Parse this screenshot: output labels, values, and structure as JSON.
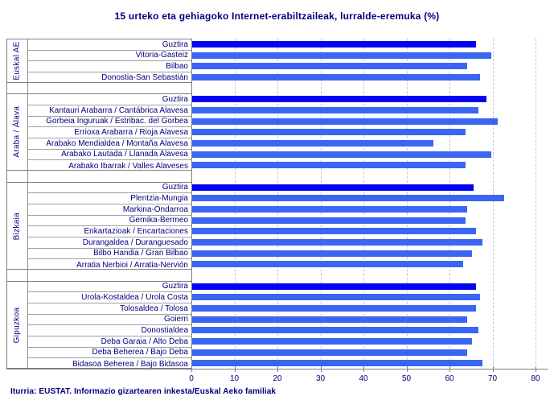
{
  "title": "15 urteko eta gehiagoko Internet-erabiltzaileak, lurralde-eremuka (%)",
  "source_note": "Iturria: EUSTAT. Informazio gizartearen inkesta/Euskal Aeko familiak",
  "colors": {
    "bar_total": "#0404f0",
    "bar_region": "#3a66f1",
    "text": "#00007d",
    "axis_line": "#808080",
    "row_separator": "#a0a0a0",
    "gridline": "#c6c6c6"
  },
  "chart_data": {
    "type": "bar",
    "orientation": "horizontal",
    "title": "15 urteko eta gehiagoko Internet-erabiltzaileak, lurralde-eremuka (%)",
    "xlabel": "",
    "ylabel": "",
    "unit": "%",
    "xlim": [
      0,
      80
    ],
    "x_ticks": [
      0,
      10,
      20,
      30,
      40,
      50,
      60,
      70,
      80
    ],
    "grid": "vertical-dashed",
    "legend": "none",
    "groups": [
      {
        "name": "Euskal AE",
        "rows": [
          {
            "label": "Guztira",
            "value": 66,
            "total": true
          },
          {
            "label": "Vitoria-Gasteiz",
            "value": 69.5,
            "total": false
          },
          {
            "label": "Bilbao",
            "value": 64,
            "total": false
          },
          {
            "label": "Donostia-San Sebastián",
            "value": 67,
            "total": false
          }
        ]
      },
      {
        "name": "Araba / Álava",
        "rows": [
          {
            "label": "Guztira",
            "value": 68.5,
            "total": true
          },
          {
            "label": "Kantauri Arabarra / Cantábrica Alavesa",
            "value": 66.5,
            "total": false
          },
          {
            "label": "Gorbeia Inguruak / Estribac. del Gorbea",
            "value": 71,
            "total": false
          },
          {
            "label": "Errioxa Arabarra / Rioja Alavesa",
            "value": 63.5,
            "total": false
          },
          {
            "label": "Arabako Mendialdea / Montaña Alavesa",
            "value": 56,
            "total": false
          },
          {
            "label": "Arabako Lautada / Llanada Alavesa",
            "value": 69.5,
            "total": false
          },
          {
            "label": "Arabako Ibarrak / Valles Alaveses",
            "value": 63.5,
            "total": false
          }
        ]
      },
      {
        "name": "Bizkaia",
        "rows": [
          {
            "label": "Guztira",
            "value": 65.5,
            "total": true
          },
          {
            "label": "Plentzia-Mungia",
            "value": 72.5,
            "total": false
          },
          {
            "label": "Markina-Ondarroa",
            "value": 64,
            "total": false
          },
          {
            "label": "Gernika-Bermeo",
            "value": 63.5,
            "total": false
          },
          {
            "label": "Enkartazioak / Encartaciones",
            "value": 66,
            "total": false
          },
          {
            "label": "Durangaldea / Duranguesado",
            "value": 67.5,
            "total": false
          },
          {
            "label": "Bilbo Handia / Gran Bilbao",
            "value": 65,
            "total": false
          },
          {
            "label": "Arratia Nerbioi / Arratia-Nervión",
            "value": 63,
            "total": false
          }
        ]
      },
      {
        "name": "Gipuzkoa",
        "rows": [
          {
            "label": "Guztira",
            "value": 66,
            "total": true
          },
          {
            "label": "Urola-Kostaldea / Urola Costa",
            "value": 67,
            "total": false
          },
          {
            "label": "Tolosaldea / Tolosa",
            "value": 66,
            "total": false
          },
          {
            "label": "Goierri",
            "value": 64,
            "total": false
          },
          {
            "label": "Donostialdea",
            "value": 66.5,
            "total": false
          },
          {
            "label": "Deba Garaia / Alto Deba",
            "value": 65,
            "total": false
          },
          {
            "label": "Deba Beherea / Bajo Deba",
            "value": 64,
            "total": false
          },
          {
            "label": "Bidasoa Beherea / Bajo Bidasoa",
            "value": 67.5,
            "total": false
          }
        ]
      }
    ]
  }
}
